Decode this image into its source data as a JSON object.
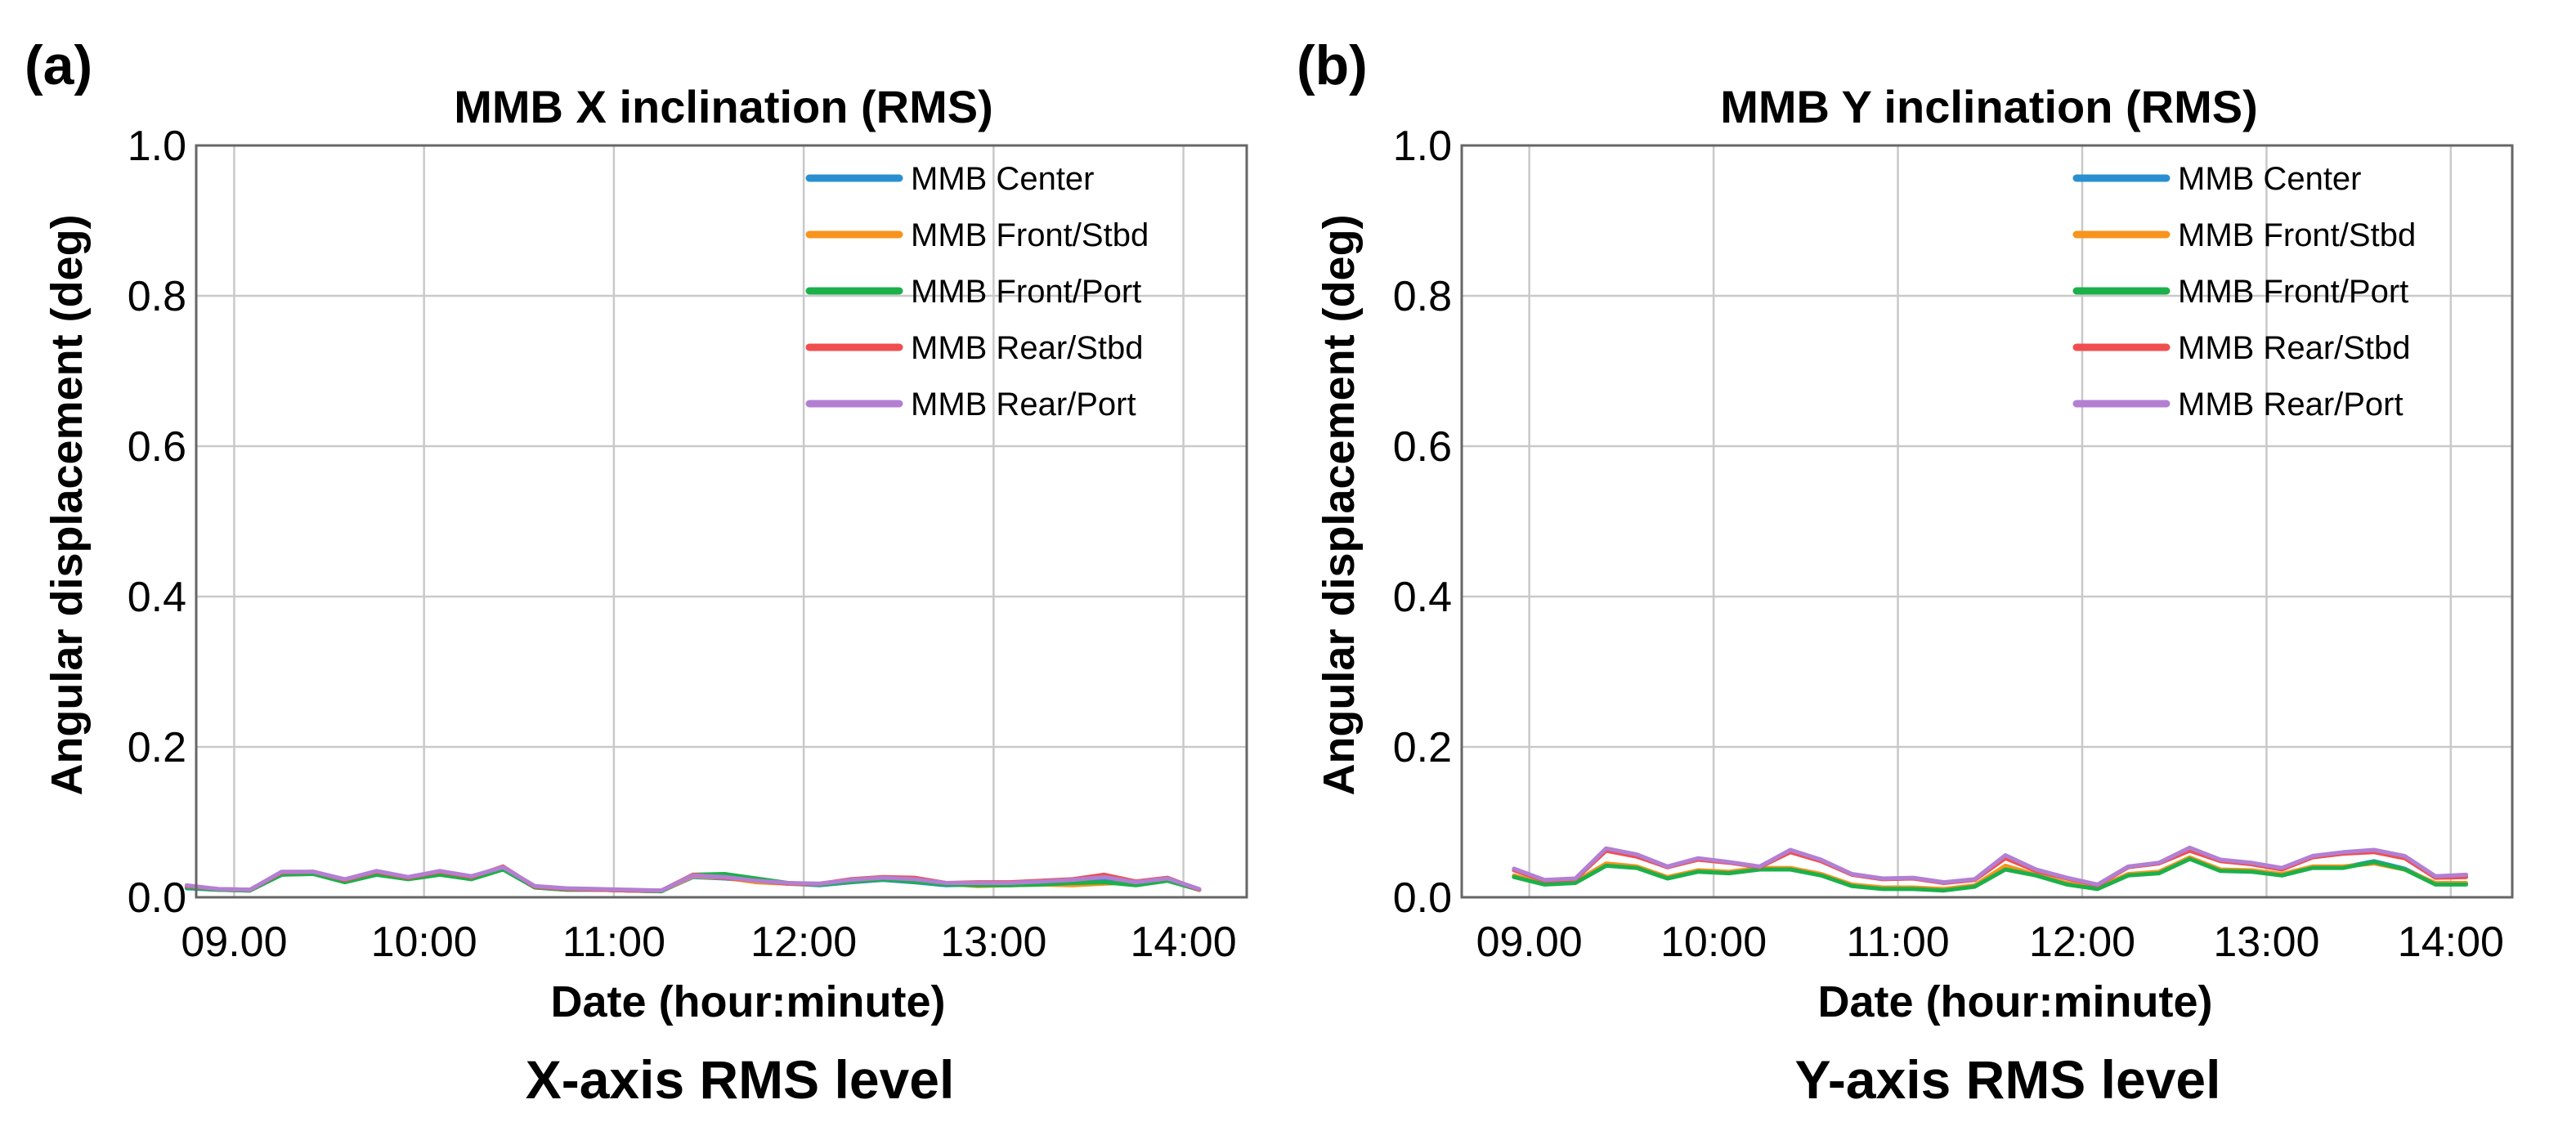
{
  "chart_data": [
    {
      "panel_label": "(a)",
      "type": "line",
      "title": "MMB X inclination (RMS)",
      "xlabel": "Date (hour:minute)",
      "ylabel": "Angular displacement (deg)",
      "caption": "X-axis RMS level",
      "ylim": [
        0,
        1.0
      ],
      "xlim": [
        528,
        860
      ],
      "yticks": [
        0.0,
        0.2,
        0.4,
        0.6,
        0.8,
        1.0
      ],
      "ytick_labels": [
        "0.0",
        "0.2",
        "0.4",
        "0.6",
        "0.8",
        "1.0"
      ],
      "xticks": [
        540,
        600,
        660,
        720,
        780,
        840
      ],
      "xtick_labels": [
        "09.00",
        "10:00",
        "11:00",
        "12:00",
        "13:00",
        "14:00"
      ],
      "grid": true,
      "legend_position": "top-right",
      "x": [
        525,
        535,
        545,
        555,
        565,
        575,
        585,
        595,
        605,
        615,
        625,
        635,
        645,
        655,
        665,
        675,
        685,
        695,
        705,
        715,
        725,
        735,
        745,
        755,
        765,
        775,
        785,
        795,
        805,
        815,
        825,
        835,
        845
      ],
      "series": [
        {
          "name": "MMB Center",
          "color": "#2a8fd0",
          "values": [
            0.012,
            0.01,
            0.009,
            0.03,
            0.033,
            0.022,
            0.03,
            0.025,
            0.032,
            0.026,
            0.038,
            0.013,
            0.01,
            0.01,
            0.009,
            0.008,
            0.027,
            0.025,
            0.022,
            0.018,
            0.016,
            0.02,
            0.023,
            0.02,
            0.016,
            0.017,
            0.016,
            0.018,
            0.019,
            0.022,
            0.018,
            0.023,
            0.01
          ]
        },
        {
          "name": "MMB Front/Stbd",
          "color": "#f7941d",
          "values": [
            0.014,
            0.01,
            0.009,
            0.031,
            0.032,
            0.021,
            0.031,
            0.026,
            0.033,
            0.025,
            0.039,
            0.014,
            0.011,
            0.01,
            0.009,
            0.008,
            0.028,
            0.026,
            0.02,
            0.018,
            0.017,
            0.021,
            0.024,
            0.022,
            0.018,
            0.015,
            0.016,
            0.017,
            0.016,
            0.018,
            0.02,
            0.024,
            0.01
          ]
        },
        {
          "name": "MMB Front/Port",
          "color": "#1cb04a",
          "values": [
            0.013,
            0.01,
            0.009,
            0.03,
            0.031,
            0.02,
            0.03,
            0.024,
            0.03,
            0.024,
            0.037,
            0.013,
            0.01,
            0.01,
            0.009,
            0.008,
            0.03,
            0.031,
            0.025,
            0.019,
            0.017,
            0.021,
            0.024,
            0.021,
            0.017,
            0.016,
            0.016,
            0.017,
            0.019,
            0.02,
            0.016,
            0.022,
            0.01
          ]
        },
        {
          "name": "MMB Rear/Stbd",
          "color": "#f04e4e",
          "values": [
            0.015,
            0.011,
            0.01,
            0.033,
            0.034,
            0.023,
            0.034,
            0.026,
            0.034,
            0.027,
            0.041,
            0.014,
            0.011,
            0.01,
            0.009,
            0.009,
            0.03,
            0.026,
            0.022,
            0.018,
            0.018,
            0.024,
            0.027,
            0.026,
            0.019,
            0.02,
            0.02,
            0.022,
            0.024,
            0.03,
            0.021,
            0.026,
            0.01
          ]
        },
        {
          "name": "MMB Rear/Port",
          "color": "#b27fd3",
          "values": [
            0.016,
            0.011,
            0.01,
            0.034,
            0.034,
            0.024,
            0.035,
            0.027,
            0.035,
            0.028,
            0.04,
            0.015,
            0.012,
            0.011,
            0.01,
            0.009,
            0.029,
            0.027,
            0.022,
            0.019,
            0.018,
            0.023,
            0.026,
            0.024,
            0.019,
            0.019,
            0.019,
            0.021,
            0.023,
            0.027,
            0.02,
            0.025,
            0.011
          ]
        }
      ]
    },
    {
      "panel_label": "(b)",
      "type": "line",
      "title": "MMB Y inclination (RMS)",
      "xlabel": "Date (hour:minute)",
      "ylabel": "Angular displacement (deg)",
      "caption": "Y-axis RMS level",
      "ylim": [
        0,
        1.0
      ],
      "xlim": [
        518,
        860
      ],
      "yticks": [
        0.0,
        0.2,
        0.4,
        0.6,
        0.8,
        1.0
      ],
      "ytick_labels": [
        "0.0",
        "0.2",
        "0.4",
        "0.6",
        "0.8",
        "1.0"
      ],
      "xticks": [
        540,
        600,
        660,
        720,
        780,
        840
      ],
      "xtick_labels": [
        "09.00",
        "10:00",
        "11:00",
        "12:00",
        "13:00",
        "14:00"
      ],
      "grid": true,
      "legend_position": "top-right",
      "x": [
        535,
        545,
        555,
        565,
        575,
        585,
        595,
        605,
        615,
        625,
        635,
        645,
        655,
        665,
        675,
        685,
        695,
        705,
        715,
        725,
        735,
        745,
        755,
        765,
        775,
        785,
        795,
        805,
        815,
        825,
        835,
        845
      ],
      "series": [
        {
          "name": "MMB Center",
          "color": "#2a8fd0",
          "values": [
            0.028,
            0.018,
            0.02,
            0.043,
            0.04,
            0.026,
            0.035,
            0.033,
            0.038,
            0.038,
            0.03,
            0.016,
            0.012,
            0.012,
            0.01,
            0.015,
            0.038,
            0.03,
            0.018,
            0.012,
            0.03,
            0.033,
            0.052,
            0.036,
            0.035,
            0.03,
            0.04,
            0.04,
            0.048,
            0.038,
            0.018,
            0.018
          ]
        },
        {
          "name": "MMB Front/Stbd",
          "color": "#f7941d",
          "values": [
            0.029,
            0.019,
            0.021,
            0.045,
            0.041,
            0.027,
            0.036,
            0.034,
            0.039,
            0.039,
            0.031,
            0.017,
            0.013,
            0.013,
            0.011,
            0.016,
            0.042,
            0.03,
            0.019,
            0.013,
            0.031,
            0.034,
            0.053,
            0.037,
            0.036,
            0.031,
            0.041,
            0.041,
            0.045,
            0.037,
            0.019,
            0.019
          ]
        },
        {
          "name": "MMB Front/Port",
          "color": "#1cb04a",
          "values": [
            0.027,
            0.017,
            0.019,
            0.042,
            0.039,
            0.025,
            0.034,
            0.032,
            0.037,
            0.037,
            0.029,
            0.015,
            0.011,
            0.011,
            0.009,
            0.014,
            0.037,
            0.029,
            0.017,
            0.011,
            0.029,
            0.032,
            0.051,
            0.035,
            0.034,
            0.029,
            0.039,
            0.039,
            0.047,
            0.037,
            0.017,
            0.017
          ]
        },
        {
          "name": "MMB Rear/Stbd",
          "color": "#f04e4e",
          "values": [
            0.036,
            0.022,
            0.024,
            0.062,
            0.054,
            0.04,
            0.05,
            0.046,
            0.04,
            0.06,
            0.048,
            0.03,
            0.024,
            0.025,
            0.019,
            0.023,
            0.052,
            0.035,
            0.025,
            0.016,
            0.04,
            0.045,
            0.062,
            0.048,
            0.044,
            0.037,
            0.053,
            0.058,
            0.06,
            0.052,
            0.026,
            0.027
          ]
        },
        {
          "name": "MMB Rear/Port",
          "color": "#b27fd3",
          "values": [
            0.038,
            0.023,
            0.025,
            0.065,
            0.057,
            0.041,
            0.052,
            0.047,
            0.041,
            0.063,
            0.05,
            0.031,
            0.025,
            0.026,
            0.02,
            0.024,
            0.056,
            0.037,
            0.026,
            0.017,
            0.041,
            0.046,
            0.066,
            0.05,
            0.046,
            0.039,
            0.055,
            0.06,
            0.063,
            0.055,
            0.028,
            0.03
          ]
        }
      ]
    }
  ]
}
